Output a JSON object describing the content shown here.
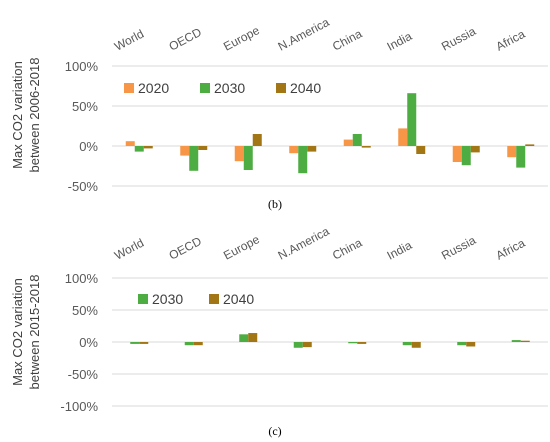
{
  "chart_data": [
    {
      "type": "bar",
      "panel_label": "(b)",
      "ylabel_lines": [
        "Max CO2 variation",
        "between 2006-2018"
      ],
      "categories": [
        "World",
        "OECD",
        "Europe",
        "N.America",
        "China",
        "India",
        "Russia",
        "Africa"
      ],
      "ylim": [
        -50,
        100
      ],
      "yticks": [
        -50,
        0,
        50,
        100
      ],
      "ytick_labels": [
        "-50%",
        "0%",
        "50%",
        "100%"
      ],
      "grid": true,
      "legend_position": "top-left",
      "series": [
        {
          "name": "2020",
          "color": "#f79646",
          "values": [
            6,
            -12,
            -19,
            -9,
            8,
            22,
            -20,
            -14
          ]
        },
        {
          "name": "2030",
          "color": "#4dac42",
          "values": [
            -7,
            -31,
            -30,
            -34,
            15,
            66,
            -24,
            -27
          ]
        },
        {
          "name": "2040",
          "color": "#a27614",
          "values": [
            -3,
            -5,
            15,
            -7,
            -2,
            -10,
            -8,
            2
          ]
        }
      ]
    },
    {
      "type": "bar",
      "panel_label": "(c)",
      "ylabel_lines": [
        "Max CO2 variation",
        "between 2015-2018"
      ],
      "categories": [
        "World",
        "OECD",
        "Europe",
        "N.America",
        "China",
        "India",
        "Russia",
        "Africa"
      ],
      "ylim": [
        -100,
        100
      ],
      "yticks": [
        -100,
        -50,
        0,
        50,
        100
      ],
      "ytick_labels": [
        "-100%",
        "-50%",
        "0%",
        "50%",
        "100%"
      ],
      "grid": true,
      "legend_position": "top-left",
      "series": [
        {
          "name": "2030",
          "color": "#4dac42",
          "values": [
            -3,
            -5,
            12,
            -9,
            -2,
            -5,
            -5,
            3
          ]
        },
        {
          "name": "2040",
          "color": "#a27614",
          "values": [
            -3,
            -5,
            14,
            -8,
            -3,
            -9,
            -7,
            2
          ]
        }
      ]
    }
  ]
}
